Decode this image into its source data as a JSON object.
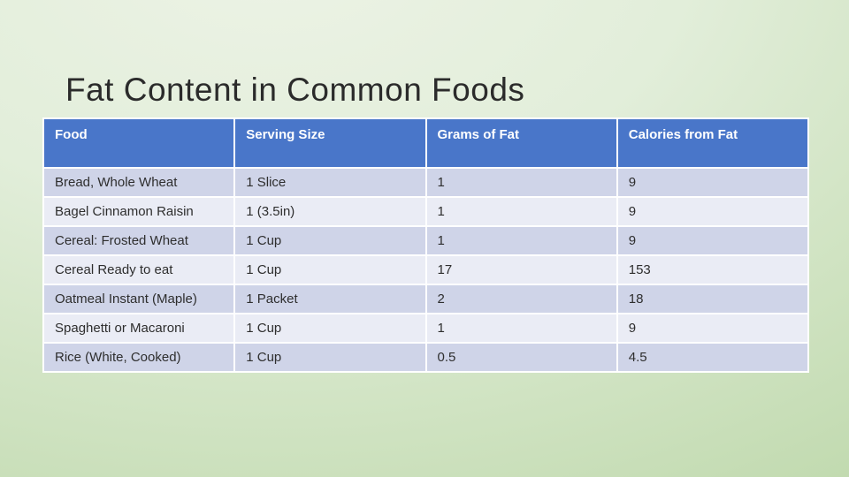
{
  "slide": {
    "title": "Fat Content in Common Foods"
  },
  "table": {
    "columns": [
      "Food",
      "Serving Size",
      "Grams of Fat",
      "Calories from Fat"
    ],
    "rows": [
      [
        "Bread, Whole Wheat",
        "1 Slice",
        "1",
        "9"
      ],
      [
        "Bagel Cinnamon Raisin",
        "1 (3.5in)",
        "1",
        "9"
      ],
      [
        "Cereal: Frosted Wheat",
        "1 Cup",
        "1",
        "9"
      ],
      [
        "Cereal Ready to eat",
        "1 Cup",
        "17",
        "153"
      ],
      [
        "Oatmeal Instant (Maple)",
        "1 Packet",
        "2",
        "18"
      ],
      [
        "Spaghetti or Macaroni",
        "1 Cup",
        "1",
        "9"
      ],
      [
        "Rice (White, Cooked)",
        "1 Cup",
        "0.5",
        "4.5"
      ]
    ]
  },
  "colors": {
    "header_bg": "#4976c9",
    "header_text": "#ffffff",
    "row_band_dark": "#cfd4e8",
    "row_band_light": "#eaecf5",
    "cell_text": "#2e2e2e",
    "title_text": "#2b2b2b",
    "background_top": "#edf3e6",
    "background_bottom": "#bcd7a9",
    "grid_lines": "#ffffff"
  }
}
